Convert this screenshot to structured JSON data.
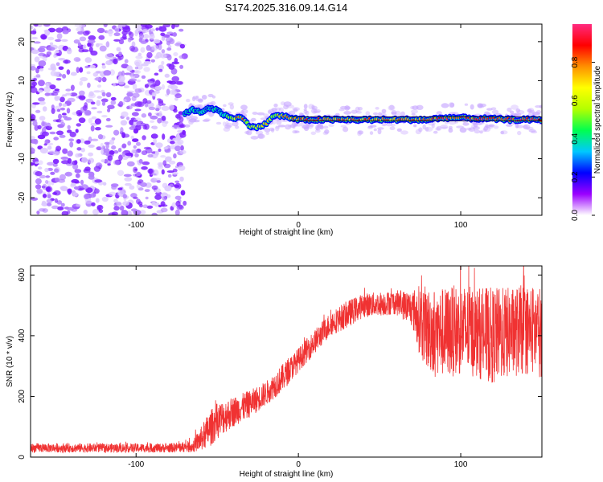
{
  "title": "S174.2025.316.09.14.G14",
  "chart_data": [
    {
      "type": "heatmap",
      "xlabel": "Height of straight line (km)",
      "ylabel": "Frequency (Hz)",
      "xlim": [
        -165,
        150
      ],
      "ylim": [
        -24.5,
        24.5
      ],
      "xticks": [
        -100,
        0,
        100
      ],
      "yticks": [
        -20,
        -10,
        0,
        10,
        20
      ],
      "colorbar": {
        "label": "Normalized spectral amplitude",
        "range": [
          0,
          1
        ],
        "ticks": [
          0,
          0.2,
          0.4,
          0.6,
          0.8
        ],
        "colormap": [
          "#ffffff",
          "#9b00ff",
          "#0000ff",
          "#00c8ff",
          "#00ff50",
          "#b4ff00",
          "#ffff00",
          "#ff9000",
          "#ff0000",
          "#ff2a7f"
        ]
      },
      "noise_region_x": [
        -165,
        -70
      ],
      "ridge": {
        "x": [
          -70,
          -65,
          -60,
          -55,
          -50,
          -45,
          -40,
          -35,
          -30,
          -25,
          -20,
          -15,
          -10,
          -5,
          0,
          10,
          20,
          30,
          40,
          50,
          60,
          70,
          80,
          90,
          100,
          110,
          120,
          130,
          140,
          150
        ],
        "freq": [
          1.5,
          2.5,
          2.0,
          3.0,
          2.5,
          1.0,
          0.5,
          0.5,
          -1.5,
          -2.0,
          -1.0,
          1.0,
          1.0,
          0.5,
          0.0,
          0.0,
          0.0,
          0.0,
          0.0,
          0.0,
          0.0,
          0.0,
          0.0,
          0.5,
          0.5,
          0.3,
          0.2,
          0.0,
          0.0,
          0.0
        ],
        "amplitude": [
          0.3,
          0.35,
          0.3,
          0.3,
          0.3,
          0.4,
          0.7,
          0.8,
          0.5,
          0.6,
          0.8,
          0.6,
          0.7,
          0.8,
          0.8,
          0.85,
          0.85,
          0.8,
          0.8,
          0.75,
          0.8,
          0.8,
          0.85,
          0.85,
          0.8,
          0.85,
          0.85,
          0.85,
          0.9,
          0.9
        ]
      }
    },
    {
      "type": "line",
      "xlabel": "Height of straight line (km)",
      "ylabel": "SNR (10 * v/v)",
      "xlim": [
        -165,
        150
      ],
      "ylim": [
        0,
        630
      ],
      "xticks": [
        -100,
        0,
        100
      ],
      "yticks": [
        0,
        200,
        400,
        600
      ],
      "color": "#f03232",
      "envelope": {
        "x": [
          -165,
          -120,
          -80,
          -65,
          -60,
          -55,
          -50,
          -40,
          -30,
          -20,
          -10,
          0,
          10,
          20,
          30,
          40,
          50,
          60,
          70,
          75,
          80,
          90,
          100,
          110,
          120,
          130,
          140,
          150
        ],
        "mean": [
          30,
          30,
          30,
          35,
          60,
          90,
          120,
          150,
          175,
          210,
          260,
          320,
          380,
          440,
          470,
          500,
          505,
          510,
          490,
          450,
          420,
          410,
          420,
          410,
          400,
          410,
          420,
          410
        ],
        "spread": [
          15,
          15,
          15,
          20,
          40,
          60,
          60,
          50,
          45,
          40,
          45,
          40,
          40,
          40,
          45,
          40,
          40,
          40,
          60,
          120,
          140,
          150,
          150,
          150,
          160,
          150,
          150,
          150
        ]
      }
    }
  ]
}
